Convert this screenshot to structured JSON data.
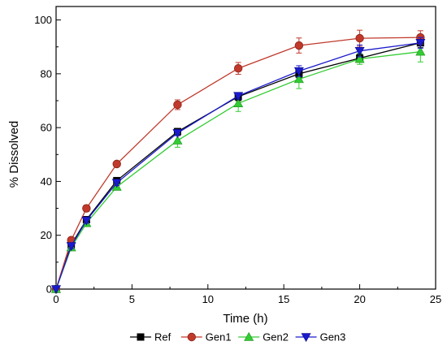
{
  "chart_data": {
    "type": "line",
    "xlabel": "Time (h)",
    "ylabel": "% Dissolved",
    "xlim": [
      0,
      25
    ],
    "ylim": [
      0,
      105
    ],
    "x_ticks": [
      0,
      5,
      10,
      15,
      20,
      25
    ],
    "y_ticks": [
      0,
      20,
      40,
      60,
      80,
      100
    ],
    "grid": false,
    "legend_position": "bottom",
    "x": [
      0,
      1,
      2,
      4,
      8,
      12,
      16,
      20,
      24
    ],
    "series": [
      {
        "name": "Ref",
        "color": "#000000",
        "marker": "square",
        "values": [
          0,
          16.5,
          25.8,
          40.3,
          58.5,
          71.5,
          80.0,
          85.8,
          91.5
        ],
        "errors": [
          0,
          1.0,
          1.0,
          1.0,
          1.2,
          1.5,
          1.5,
          1.5,
          1.8
        ]
      },
      {
        "name": "Gen1",
        "color": "#c0392b",
        "marker": "circle",
        "values": [
          0,
          18.2,
          30.0,
          46.5,
          68.5,
          82.0,
          90.5,
          93.2,
          93.5
        ],
        "errors": [
          0,
          1.0,
          1.2,
          1.0,
          1.8,
          2.2,
          2.8,
          3.0,
          2.5
        ]
      },
      {
        "name": "Gen2",
        "color": "#33cc33",
        "marker": "triangle-up",
        "values": [
          0,
          15.5,
          24.5,
          38.0,
          55.2,
          69.0,
          78.0,
          85.5,
          88.2
        ],
        "errors": [
          0,
          1.0,
          1.2,
          1.2,
          2.5,
          3.0,
          3.5,
          2.0,
          3.8
        ]
      },
      {
        "name": "Gen3",
        "color": "#1a1acc",
        "marker": "triangle-down",
        "values": [
          0,
          16.0,
          25.5,
          39.5,
          58.0,
          71.8,
          81.0,
          88.5,
          91.5
        ],
        "errors": [
          0,
          1.0,
          1.0,
          1.0,
          1.0,
          1.2,
          2.0,
          2.2,
          2.0
        ]
      }
    ]
  }
}
